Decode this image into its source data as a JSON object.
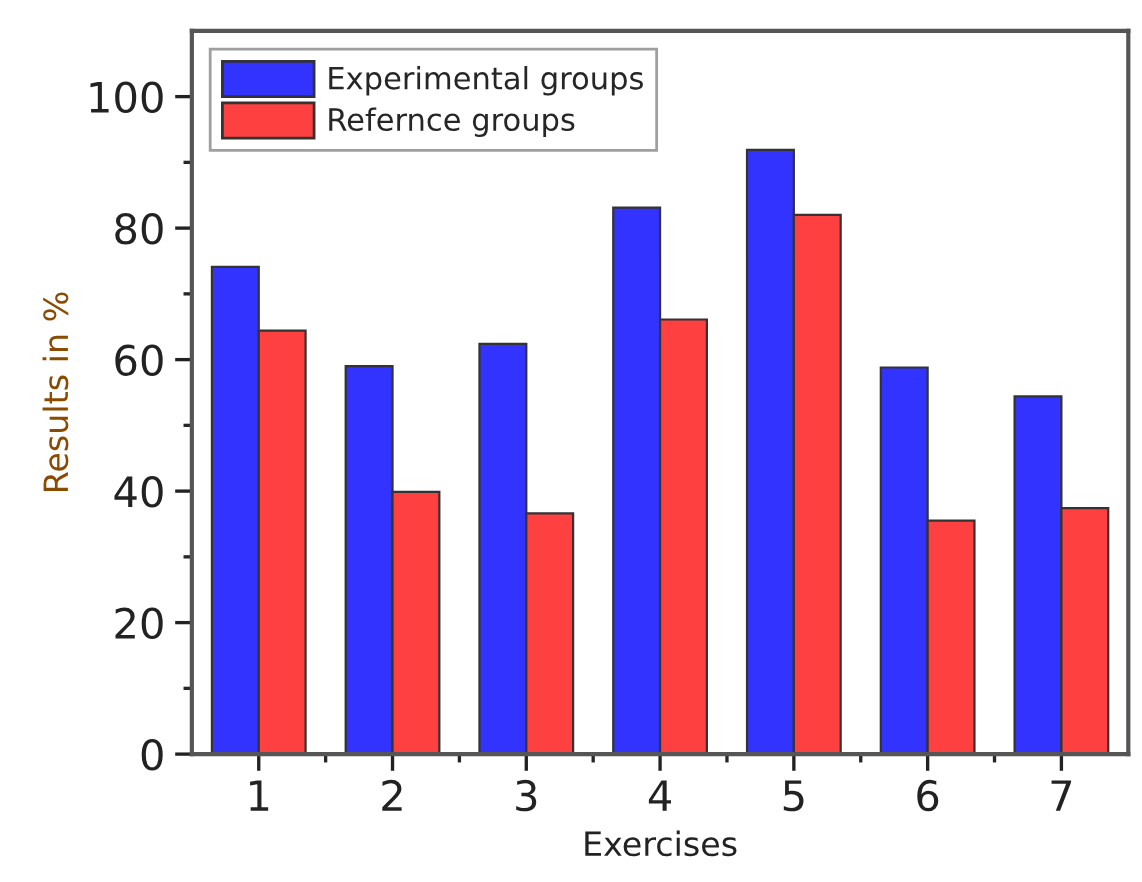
{
  "chart_data": {
    "type": "bar",
    "xlabel": "Exercises",
    "ylabel": "Results in %",
    "categories": [
      "1",
      "2",
      "3",
      "4",
      "5",
      "6",
      "7"
    ],
    "series": [
      {
        "name": "Experimental groups",
        "color": "#3333ff",
        "values": [
          74.1,
          59.0,
          62.4,
          83.1,
          91.9,
          58.8,
          54.4
        ]
      },
      {
        "name": "Refernce groups",
        "color": "#ff4040",
        "values": [
          64.4,
          39.9,
          36.6,
          66.1,
          82.0,
          35.5,
          37.4
        ]
      }
    ],
    "ylim": [
      0,
      110
    ],
    "yticks": [
      0,
      {
        "value": 10,
        "label": null
      },
      20,
      {
        "value": 30,
        "label": null
      },
      40,
      {
        "value": 50,
        "label": null
      },
      60,
      {
        "value": 70,
        "label": null
      },
      80,
      {
        "value": 90,
        "label": null
      },
      100
    ],
    "legend": "top left",
    "grid": false
  }
}
